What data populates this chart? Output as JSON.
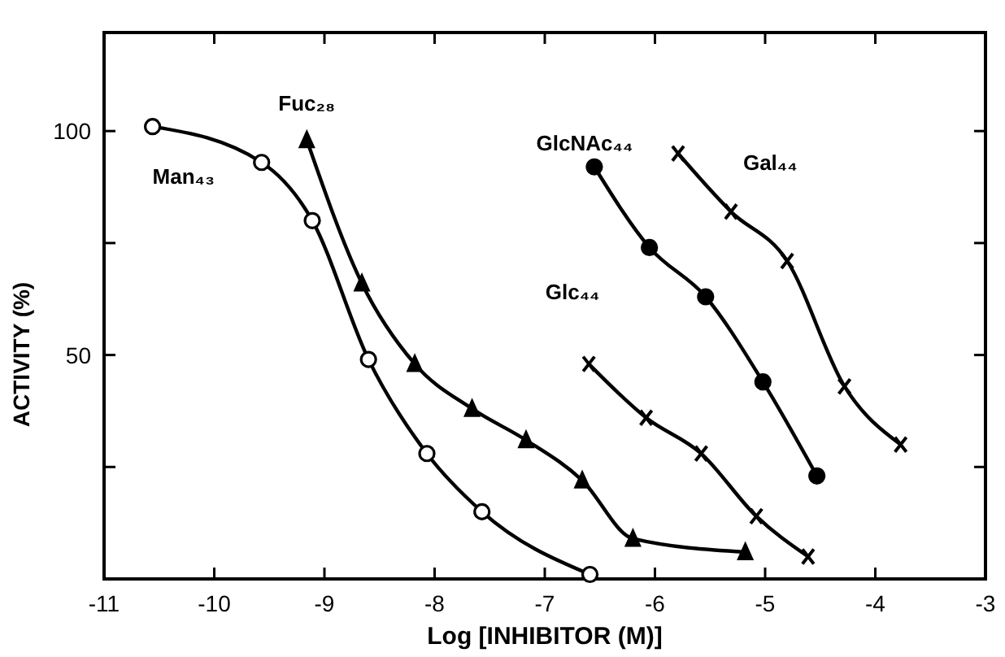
{
  "chart_data": {
    "type": "line",
    "xlabel": "Log [INHIBITOR (M)]",
    "ylabel": "ACTIVITY (%)",
    "xlim": [
      -11,
      -3
    ],
    "xticks": [
      -11,
      -10,
      -9,
      -8,
      -7,
      -6,
      -5,
      -4,
      -3
    ],
    "ylim": [
      0,
      122
    ],
    "yticks": [
      {
        "value": 25,
        "label": null
      },
      50,
      {
        "value": 75,
        "label": null
      },
      100
    ],
    "grid": false,
    "line_style": "solid",
    "series": [
      {
        "name": "Man₄₃",
        "color": "#000000",
        "marker": "circle",
        "x": [
          -10.56,
          -9.57,
          -9.11,
          -8.6,
          -8.07,
          -7.57,
          -6.59
        ],
        "values": [
          101,
          93,
          80,
          49,
          28,
          15,
          1
        ]
      },
      {
        "name": "Fuc₂₈",
        "color": "#000000",
        "marker": "triangle",
        "x": [
          -9.16,
          -8.66,
          -8.18,
          -7.66,
          -7.17,
          -6.66,
          -6.2,
          -5.18
        ],
        "values": [
          98,
          66,
          48,
          38,
          31,
          22,
          9,
          6
        ]
      },
      {
        "name": "Glc₄₄",
        "color": "#000000",
        "marker": "cross",
        "x": [
          -6.6,
          -6.08,
          -5.58,
          -5.08,
          -4.61
        ],
        "values": [
          48,
          36,
          28,
          14,
          5
        ]
      },
      {
        "name": "GlcNAc₄₄",
        "color": "#000000",
        "marker": "circle",
        "x": [
          -6.55,
          -6.05,
          -5.54,
          -5.02,
          -4.53
        ],
        "values": [
          92,
          74,
          63,
          44,
          23
        ]
      },
      {
        "name": "Gal₄₄",
        "color": "#000000",
        "marker": "cross",
        "x": [
          -5.79,
          -5.31,
          -4.8,
          -4.28,
          -3.77
        ],
        "values": [
          95,
          82,
          71,
          43,
          30
        ]
      }
    ]
  }
}
